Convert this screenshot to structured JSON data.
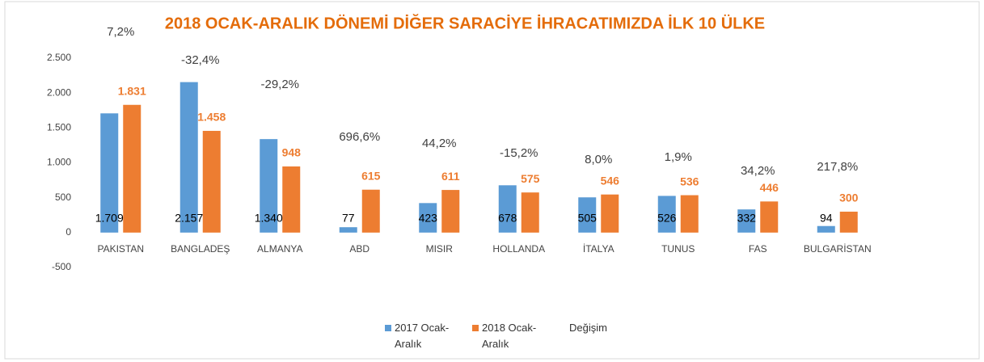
{
  "chart_data": {
    "type": "bar",
    "title": "2018 OCAK-ARALIK DÖNEMİ DİĞER SARACİYE İHRACATIMIZDA İLK  10 ÜLKE",
    "categories": [
      "PAKISTAN",
      "BANGLADEŞ",
      "ALMANYA",
      "ABD",
      "MISIR",
      "HOLLANDA",
      "İTALYA",
      "TUNUS",
      "FAS",
      "BULGARİSTAN"
    ],
    "series": [
      {
        "name": "2017 Ocak-Aralık",
        "color": "#5b9bd5",
        "values": [
          1709,
          2157,
          1340,
          77,
          423,
          678,
          505,
          526,
          332,
          94
        ],
        "value_labels": [
          "1.709",
          "2.157",
          "1.340",
          "77",
          "423",
          "678",
          "505",
          "526",
          "332",
          "94"
        ]
      },
      {
        "name": "2018 Ocak-Aralık",
        "color": "#ed7d31",
        "values": [
          1831,
          1458,
          948,
          615,
          611,
          575,
          546,
          536,
          446,
          300
        ],
        "value_labels": [
          "1.831",
          "1.458",
          "948",
          "615",
          "611",
          "575",
          "546",
          "536",
          "446",
          "300"
        ]
      },
      {
        "name": "Değişim",
        "axis": "y2",
        "values": [
          7.2,
          -32.4,
          -29.2,
          696.6,
          44.2,
          -15.2,
          8.0,
          1.9,
          34.2,
          217.8
        ],
        "value_labels": [
          "7,2%",
          "-32,4%",
          "-29,2%",
          "696,6%",
          "44,2%",
          "-15,2%",
          "8,0%",
          "1,9%",
          "34,2%",
          "217,8%"
        ]
      }
    ],
    "ylim": [
      -500,
      2500
    ],
    "yticks": [
      -500,
      0,
      500,
      {
        "value": 1000,
        "label": "1.000"
      },
      {
        "value": 1500,
        "label": "1.500"
      },
      {
        "value": 2000,
        "label": "2.000"
      },
      {
        "value": 2500,
        "label": "2.500"
      }
    ],
    "grid": false
  }
}
